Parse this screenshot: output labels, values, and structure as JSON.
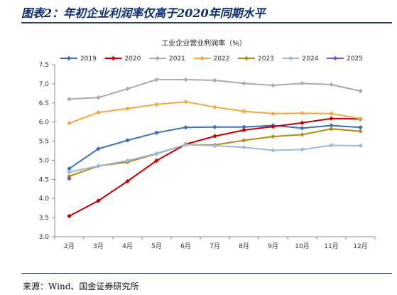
{
  "header": {
    "title": "图表2：年初企业利润率仅高于2020年同期水平"
  },
  "footer": {
    "source": "来源：Wind、国金证券研究所"
  },
  "chart_data": {
    "type": "line",
    "title": "工业企业营业利润率（%）",
    "xlabel": "",
    "ylabel": "",
    "categories": [
      "2月",
      "3月",
      "4月",
      "5月",
      "6月",
      "7月",
      "8月",
      "9月",
      "10月",
      "11月",
      "12月"
    ],
    "ylim": [
      3.0,
      7.5
    ],
    "yticks": [
      "3.0",
      "3.5",
      "4.0",
      "4.5",
      "5.0",
      "5.5",
      "6.0",
      "6.5",
      "7.0",
      "7.5"
    ],
    "grid": false,
    "legend_position": "top",
    "series": [
      {
        "name": "2019",
        "color": "#3a6ebc",
        "marker": "diamond",
        "values": [
          4.78,
          5.3,
          5.52,
          5.72,
          5.86,
          5.87,
          5.87,
          5.91,
          5.84,
          5.91,
          5.86
        ]
      },
      {
        "name": "2020",
        "color": "#c00000",
        "marker": "diamond",
        "values": [
          3.54,
          3.94,
          4.45,
          4.99,
          5.42,
          5.63,
          5.79,
          5.88,
          5.98,
          6.09,
          6.08
        ]
      },
      {
        "name": "2021",
        "color": "#a6acb1",
        "marker": "diamond",
        "values": [
          6.6,
          6.64,
          6.87,
          7.11,
          7.11,
          7.09,
          7.01,
          6.96,
          7.01,
          6.98,
          6.81
        ]
      },
      {
        "name": "2022",
        "color": "#f7a540",
        "marker": "diamond",
        "values": [
          5.97,
          6.25,
          6.35,
          6.46,
          6.53,
          6.39,
          6.28,
          6.22,
          6.23,
          6.22,
          6.09
        ]
      },
      {
        "name": "2023",
        "color": "#b38b12",
        "marker": "diamond",
        "values": [
          4.58,
          4.85,
          4.95,
          5.17,
          5.41,
          5.4,
          5.52,
          5.62,
          5.67,
          5.82,
          5.76
        ]
      },
      {
        "name": "2024",
        "color": "#9db7de",
        "marker": "diamond",
        "values": [
          4.69,
          4.85,
          4.99,
          5.18,
          5.41,
          5.38,
          5.34,
          5.26,
          5.28,
          5.39,
          5.38
        ]
      },
      {
        "name": "2025",
        "color": "#7f4fc4",
        "marker": "diamond",
        "values": [
          4.52,
          null,
          null,
          null,
          null,
          null,
          null,
          null,
          null,
          null,
          null
        ]
      }
    ]
  }
}
